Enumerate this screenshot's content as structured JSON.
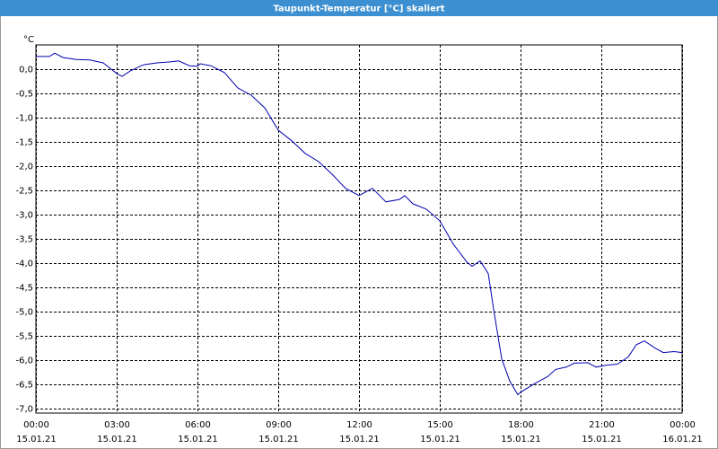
{
  "chart_data": {
    "type": "line",
    "title": "Taupunkt-Temperatur [°C] skaliert",
    "ylabel": "°C",
    "x": [
      0,
      0.5,
      0.7,
      1.0,
      1.5,
      2.0,
      2.5,
      3.0,
      3.2,
      3.5,
      4.0,
      4.5,
      5.0,
      5.3,
      5.7,
      6.0,
      6.1,
      6.5,
      7.0,
      7.5,
      8.0,
      8.5,
      9.0,
      9.5,
      10.0,
      10.5,
      11.0,
      11.5,
      12.0,
      12.5,
      13.0,
      13.5,
      13.7,
      14.0,
      14.5,
      15.0,
      15.5,
      16.0,
      16.2,
      16.5,
      16.8,
      17.0,
      17.3,
      17.6,
      17.9,
      18.0,
      18.5,
      19.0,
      19.3,
      19.7,
      20.0,
      20.5,
      20.8,
      21.2,
      21.6,
      22.0,
      22.3,
      22.6,
      23.0,
      23.3,
      23.7,
      24.0
    ],
    "series": [
      {
        "name": "Taupunkt",
        "color": "#0000b0",
        "values": [
          0.26,
          0.26,
          0.33,
          0.24,
          0.2,
          0.19,
          0.13,
          -0.09,
          -0.15,
          -0.04,
          0.09,
          0.13,
          0.15,
          0.17,
          0.07,
          0.06,
          0.11,
          0.07,
          -0.07,
          -0.39,
          -0.54,
          -0.8,
          -1.26,
          -1.48,
          -1.74,
          -1.91,
          -2.17,
          -2.46,
          -2.61,
          -2.46,
          -2.74,
          -2.69,
          -2.61,
          -2.78,
          -2.89,
          -3.13,
          -3.61,
          -3.98,
          -4.07,
          -3.96,
          -4.22,
          -4.96,
          -5.98,
          -6.44,
          -6.72,
          -6.67,
          -6.5,
          -6.35,
          -6.2,
          -6.15,
          -6.07,
          -6.06,
          -6.15,
          -6.11,
          -6.09,
          -5.94,
          -5.69,
          -5.61,
          -5.76,
          -5.85,
          -5.83,
          -5.85
        ]
      }
    ],
    "xlim": [
      0,
      24
    ],
    "xticks": [
      {
        "value": 0,
        "label": "00:00",
        "date": "15.01.21"
      },
      {
        "value": 3,
        "label": "03:00",
        "date": "15.01.21"
      },
      {
        "value": 6,
        "label": "06:00",
        "date": "15.01.21"
      },
      {
        "value": 9,
        "label": "09:00",
        "date": "15.01.21"
      },
      {
        "value": 12,
        "label": "12:00",
        "date": "15.01.21"
      },
      {
        "value": 15,
        "label": "15:00",
        "date": "15.01.21"
      },
      {
        "value": 18,
        "label": "18:00",
        "date": "15.01.21"
      },
      {
        "value": 21,
        "label": "21:00",
        "date": "15.01.21"
      },
      {
        "value": 24,
        "label": "00:00",
        "date": "16.01.21"
      }
    ],
    "ylim": [
      -7.1,
      0.5
    ],
    "yticks": [
      {
        "value": 0,
        "label": "0,0"
      },
      {
        "value": -0.5,
        "label": "-0,5"
      },
      {
        "value": -1,
        "label": "-1,0"
      },
      {
        "value": -1.5,
        "label": "-1,5"
      },
      {
        "value": -2,
        "label": "-2,0"
      },
      {
        "value": -2.5,
        "label": "-2,5"
      },
      {
        "value": -3,
        "label": "-3,0"
      },
      {
        "value": -3.5,
        "label": "-3,5"
      },
      {
        "value": -4,
        "label": "-4,0"
      },
      {
        "value": -4.5,
        "label": "-4,5"
      },
      {
        "value": -5,
        "label": "-5,0"
      },
      {
        "value": -5.5,
        "label": "-5,5"
      },
      {
        "value": -6,
        "label": "-6,0"
      },
      {
        "value": -6.5,
        "label": "-6,5"
      },
      {
        "value": -7,
        "label": "-7,0"
      }
    ],
    "grid": true
  }
}
